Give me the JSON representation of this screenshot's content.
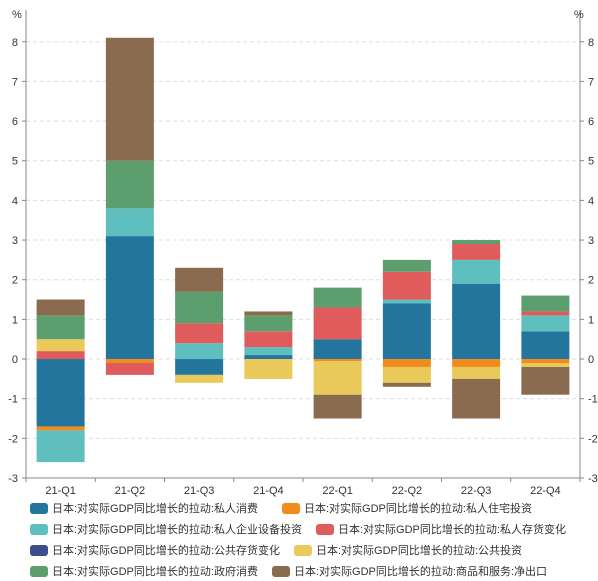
{
  "chart_data": {
    "type": "bar",
    "stacked": true,
    "categories": [
      "21-Q1",
      "21-Q2",
      "21-Q3",
      "21-Q4",
      "22-Q1",
      "22-Q2",
      "22-Q3",
      "22-Q4"
    ],
    "ylabel_left": "%",
    "ylabel_right": "%",
    "ylim": [
      -3,
      8.7
    ],
    "yticks": [
      -3,
      -2,
      -1,
      0,
      1,
      2,
      3,
      4,
      5,
      6,
      7,
      8
    ],
    "grid": "horizontal dashed",
    "legend_position": "bottom",
    "series": [
      {
        "name": "日本:对实际GDP同比增长的拉动:私人消费",
        "color": "#23759e",
        "values": [
          -1.7,
          3.1,
          -0.4,
          0.1,
          0.5,
          1.4,
          1.9,
          0.7
        ]
      },
      {
        "name": "日本:对实际GDP同比增长的拉动:私人住宅投资",
        "color": "#f08c1e",
        "values": [
          -0.1,
          -0.1,
          0.0,
          0.0,
          -0.05,
          -0.2,
          -0.2,
          -0.1
        ]
      },
      {
        "name": "日本:对实际GDP同比增长的拉动:私人企业设备投资",
        "color": "#5fbfbf",
        "values": [
          -0.8,
          0.7,
          0.4,
          0.2,
          0.0,
          0.1,
          0.6,
          0.4
        ]
      },
      {
        "name": "日本:对实际GDP同比增长的拉动:私人存货变化",
        "color": "#e05c5c",
        "values": [
          0.2,
          -0.3,
          0.5,
          0.4,
          0.8,
          0.7,
          0.4,
          0.1
        ]
      },
      {
        "name": "日本:对实际GDP同比增长的拉动:公共存货变化",
        "color": "#3d4e8f",
        "values": [
          0.0,
          0.0,
          0.0,
          0.0,
          0.0,
          0.0,
          0.0,
          0.0
        ]
      },
      {
        "name": "日本:对实际GDP同比增长的拉动:公共投资",
        "color": "#e8c95a",
        "values": [
          0.3,
          0.0,
          -0.2,
          -0.5,
          -0.85,
          -0.4,
          -0.3,
          -0.1
        ]
      },
      {
        "name": "日本:对实际GDP同比增长的拉动:政府消费",
        "color": "#5c9e6e",
        "values": [
          0.6,
          1.2,
          0.8,
          0.4,
          0.5,
          0.3,
          0.1,
          0.4
        ]
      },
      {
        "name": "日本:对实际GDP同比增长的拉动:商品和服务:净出口",
        "color": "#8b6b4f",
        "values": [
          0.4,
          3.1,
          0.6,
          0.1,
          -0.6,
          -0.1,
          -1.0,
          -0.7
        ]
      }
    ]
  }
}
